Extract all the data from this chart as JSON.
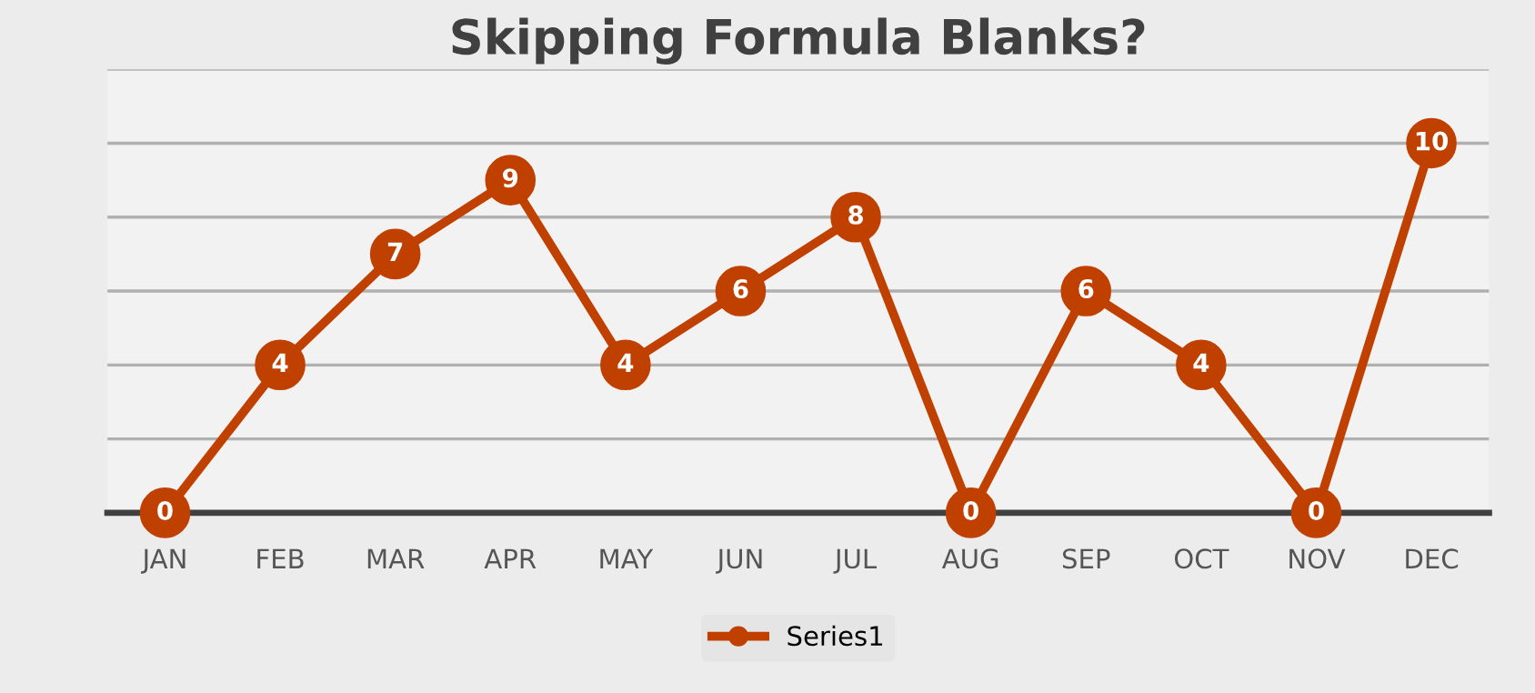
{
  "chart_data": {
    "type": "line",
    "title": "Skipping Formula Blanks?",
    "categories": [
      "JAN",
      "FEB",
      "MAR",
      "APR",
      "MAY",
      "JUN",
      "JUL",
      "AUG",
      "SEP",
      "OCT",
      "NOV",
      "DEC"
    ],
    "series": [
      {
        "name": "Series1",
        "color": "#c04000",
        "values": [
          0,
          4,
          7,
          9,
          4,
          6,
          8,
          0,
          6,
          4,
          0,
          10
        ]
      }
    ],
    "tick_labels": "x",
    "grid": "y",
    "legend": "bottom",
    "marker": "circle",
    "line_style": "solid",
    "data_labels": true
  }
}
